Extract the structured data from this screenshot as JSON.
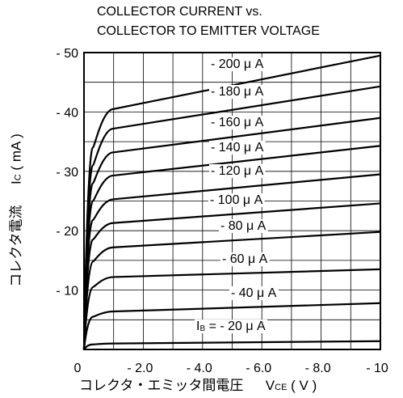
{
  "chart_data": {
    "type": "line",
    "title": [
      "COLLECTOR CURRENT vs.",
      "COLLECTOR TO EMITTER VOLTAGE"
    ],
    "xlabel": "コレクタ・エミッタ間電圧",
    "xsymbol_main": "V",
    "xsymbol_sub": "CE",
    "xunit": "( V )",
    "ylabel": "コレクタ電流",
    "ysymbol_main": "I",
    "ysymbol_sub": "C",
    "yunit": "( mA )",
    "xlim": [
      0,
      -10
    ],
    "ylim": [
      0,
      -50
    ],
    "x_ticks": [
      {
        "value": 0,
        "label": "0"
      },
      {
        "value": -2,
        "label": "- 2.0"
      },
      {
        "value": -4,
        "label": "- 4.0"
      },
      {
        "value": -6,
        "label": "- 6.0"
      },
      {
        "value": -8,
        "label": "- 8.0"
      },
      {
        "value": -10,
        "label": "- 10"
      }
    ],
    "y_ticks": [
      {
        "value": -10,
        "label": "- 10"
      },
      {
        "value": -20,
        "label": "- 20"
      },
      {
        "value": -30,
        "label": "- 30"
      },
      {
        "value": -40,
        "label": "- 40"
      },
      {
        "value": -50,
        "label": "- 50"
      }
    ],
    "grid": true,
    "series": [
      {
        "name": "- 20 μ A",
        "label_prefix": "I",
        "label_sub": "B",
        "label_rest": " = - 20 μ A",
        "x": [
          0,
          -0.3,
          -1,
          -10
        ],
        "y": [
          0,
          -0.85,
          -1.0,
          -1.4
        ]
      },
      {
        "name": "- 40 μ A",
        "x": [
          0,
          -0.3,
          -1,
          -10
        ],
        "y": [
          0,
          -5.5,
          -6.4,
          -7.8
        ]
      },
      {
        "name": "- 60 μ A",
        "x": [
          0,
          -0.3,
          -1,
          -10
        ],
        "y": [
          0,
          -10.5,
          -12.2,
          -13.5
        ]
      },
      {
        "name": "- 80 μ A",
        "x": [
          0,
          -0.3,
          -1,
          -10
        ],
        "y": [
          0,
          -14.8,
          -17.2,
          -19.8
        ]
      },
      {
        "name": "- 100 μ A",
        "x": [
          0,
          -0.3,
          -1,
          -10
        ],
        "y": [
          0,
          -18.5,
          -21.3,
          -24.6
        ]
      },
      {
        "name": "- 120 μ A",
        "x": [
          0,
          -0.3,
          -1,
          -10
        ],
        "y": [
          0,
          -21.8,
          -25.3,
          -29.5
        ]
      },
      {
        "name": "- 140 μ A",
        "x": [
          0,
          -0.3,
          -1,
          -10
        ],
        "y": [
          0,
          -25.0,
          -29.3,
          -34.3
        ]
      },
      {
        "name": "- 160 μ A",
        "x": [
          0,
          -0.3,
          -1,
          -10
        ],
        "y": [
          0,
          -28.0,
          -33.2,
          -39.0
        ]
      },
      {
        "name": "- 180 μ A",
        "x": [
          0,
          -0.3,
          -1,
          -10
        ],
        "y": [
          0,
          -31.0,
          -37.2,
          -44.3
        ]
      },
      {
        "name": "- 200 μ A",
        "x": [
          0,
          -0.3,
          -1,
          -10
        ],
        "y": [
          0,
          -34.0,
          -40.5,
          -49.5
        ]
      }
    ]
  }
}
